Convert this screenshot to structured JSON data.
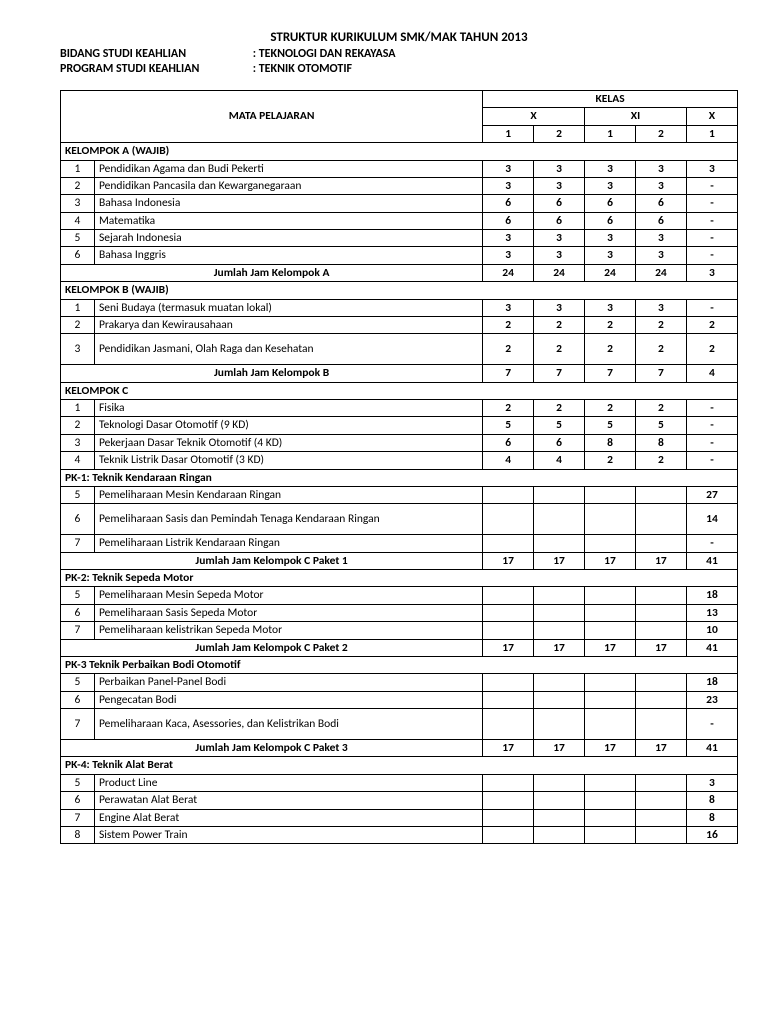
{
  "header": {
    "title": "STRUKTUR KURIKULUM SMK/MAK TAHUN 2013",
    "line1_label": "BIDANG STUDI KEAHLIAN",
    "line1_value": ": TEKNOLOGI DAN REKAYASA",
    "line2_label": "PROGRAM STUDI KEAHLIAN",
    "line2_value": ": TEKNIK OTOMOTIF"
  },
  "table": {
    "col_headers": {
      "mata_pelajaran": "MATA PELAJARAN",
      "kelas": "KELAS",
      "x": "X",
      "xi": "XI",
      "xii": "X",
      "s1": "1",
      "s2": "2"
    },
    "rows": [
      {
        "type": "section",
        "label": "KELOMPOK A (WAJIB)"
      },
      {
        "type": "item",
        "no": "1",
        "subj": "Pendidikan Agama dan Budi Pekerti",
        "v": [
          "3",
          "3",
          "3",
          "3",
          "3"
        ]
      },
      {
        "type": "item",
        "no": "2",
        "subj": "Pendidikan Pancasila dan Kewarganegaraan",
        "v": [
          "3",
          "3",
          "3",
          "3",
          "-"
        ]
      },
      {
        "type": "item",
        "no": "3",
        "subj": "Bahasa Indonesia",
        "v": [
          "6",
          "6",
          "6",
          "6",
          "-"
        ]
      },
      {
        "type": "item",
        "no": "4",
        "subj": "Matematika",
        "v": [
          "6",
          "6",
          "6",
          "6",
          "-"
        ]
      },
      {
        "type": "item",
        "no": "5",
        "subj": "Sejarah Indonesia",
        "v": [
          "3",
          "3",
          "3",
          "3",
          "-"
        ]
      },
      {
        "type": "item",
        "no": "6",
        "subj": "Bahasa Inggris",
        "v": [
          "3",
          "3",
          "3",
          "3",
          "-"
        ]
      },
      {
        "type": "sum",
        "label": "Jumlah Jam Kelompok A",
        "v": [
          "24",
          "24",
          "24",
          "24",
          "3"
        ]
      },
      {
        "type": "section",
        "label": "KELOMPOK B (WAJIB)"
      },
      {
        "type": "item",
        "no": "1",
        "subj": "Seni Budaya (termasuk muatan lokal)",
        "v": [
          "3",
          "3",
          "3",
          "3",
          "-"
        ]
      },
      {
        "type": "item",
        "no": "2",
        "subj": "Prakarya dan Kewirausahaan",
        "v": [
          "2",
          "2",
          "2",
          "2",
          "2"
        ]
      },
      {
        "type": "item",
        "no": "3",
        "subj": "Pendidikan Jasmani, Olah Raga dan Kesehatan",
        "v": [
          "2",
          "2",
          "2",
          "2",
          "2"
        ],
        "tall": true
      },
      {
        "type": "sum",
        "label": "Jumlah Jam Kelompok B",
        "v": [
          "7",
          "7",
          "7",
          "7",
          "4"
        ]
      },
      {
        "type": "section",
        "label": "KELOMPOK C"
      },
      {
        "type": "item",
        "no": "1",
        "subj": "Fisika",
        "v": [
          "2",
          "2",
          "2",
          "2",
          "-"
        ]
      },
      {
        "type": "item",
        "no": "2",
        "subj": "Teknologi Dasar Otomotif (9 KD)",
        "v": [
          "5",
          "5",
          "5",
          "5",
          "-"
        ]
      },
      {
        "type": "item",
        "no": "3",
        "subj": "Pekerjaan Dasar Teknik Otomotif (4 KD)",
        "v": [
          "6",
          "6",
          "8",
          "8",
          "-"
        ]
      },
      {
        "type": "item",
        "no": "4",
        "subj": "Teknik Listrik Dasar Otomotif (3 KD)",
        "v": [
          "4",
          "4",
          "2",
          "2",
          "-"
        ]
      },
      {
        "type": "section",
        "label": "PK-1: Teknik Kendaraan Ringan"
      },
      {
        "type": "item",
        "no": "5",
        "subj": "Pemeliharaan Mesin Kendaraan Ringan",
        "v": [
          "",
          "",
          "",
          "",
          "27"
        ]
      },
      {
        "type": "item",
        "no": "6",
        "subj": "Pemeliharaan Sasis dan Pemindah Tenaga Kendaraan Ringan",
        "v": [
          "",
          "",
          "",
          "",
          "14"
        ],
        "tall": true
      },
      {
        "type": "item",
        "no": "7",
        "subj": "Pemeliharaan Listrik Kendaraan Ringan",
        "v": [
          "",
          "",
          "",
          "",
          "-"
        ]
      },
      {
        "type": "sum",
        "label": "Jumlah Jam Kelompok C Paket 1",
        "v": [
          "17",
          "17",
          "17",
          "17",
          "41"
        ]
      },
      {
        "type": "section",
        "label": "PK-2: Teknik Sepeda Motor"
      },
      {
        "type": "item",
        "no": "5",
        "subj": "Pemeliharaan Mesin Sepeda Motor",
        "v": [
          "",
          "",
          "",
          "",
          "18"
        ]
      },
      {
        "type": "item",
        "no": "6",
        "subj": "Pemeliharaan Sasis Sepeda Motor",
        "v": [
          "",
          "",
          "",
          "",
          "13"
        ]
      },
      {
        "type": "item",
        "no": "7",
        "subj": "Pemeliharaan kelistrikan Sepeda Motor",
        "v": [
          "",
          "",
          "",
          "",
          "10"
        ]
      },
      {
        "type": "sum",
        "label": "Jumlah Jam Kelompok C Paket 2",
        "v": [
          "17",
          "17",
          "17",
          "17",
          "41"
        ]
      },
      {
        "type": "section",
        "label": "PK-3 Teknik Perbaikan Bodi Otomotif"
      },
      {
        "type": "item",
        "no": "5",
        "subj": "Perbaikan Panel-Panel Bodi",
        "v": [
          "",
          "",
          "",
          "",
          "18"
        ]
      },
      {
        "type": "item",
        "no": "6",
        "subj": "Pengecatan Bodi",
        "v": [
          "",
          "",
          "",
          "",
          "23"
        ]
      },
      {
        "type": "item",
        "no": "7",
        "subj": "Pemeliharaan Kaca, Asessories, dan Kelistrikan Bodi",
        "v": [
          "",
          "",
          "",
          "",
          "-"
        ],
        "tall": true
      },
      {
        "type": "sum",
        "label": "Jumlah Jam Kelompok C Paket 3",
        "v": [
          "17",
          "17",
          "17",
          "17",
          "41"
        ]
      },
      {
        "type": "section",
        "label": "PK-4:  Teknik Alat Berat"
      },
      {
        "type": "item",
        "no": "5",
        "subj": "Product Line",
        "v": [
          "",
          "",
          "",
          "",
          "3"
        ]
      },
      {
        "type": "item",
        "no": "6",
        "subj": "Perawatan Alat Berat",
        "v": [
          "",
          "",
          "",
          "",
          "8"
        ]
      },
      {
        "type": "item",
        "no": "7",
        "subj": "Engine Alat Berat",
        "v": [
          "",
          "",
          "",
          "",
          "8"
        ]
      },
      {
        "type": "item",
        "no": "8",
        "subj": "Sistem Power Train",
        "v": [
          "",
          "",
          "",
          "",
          "16"
        ]
      }
    ]
  }
}
